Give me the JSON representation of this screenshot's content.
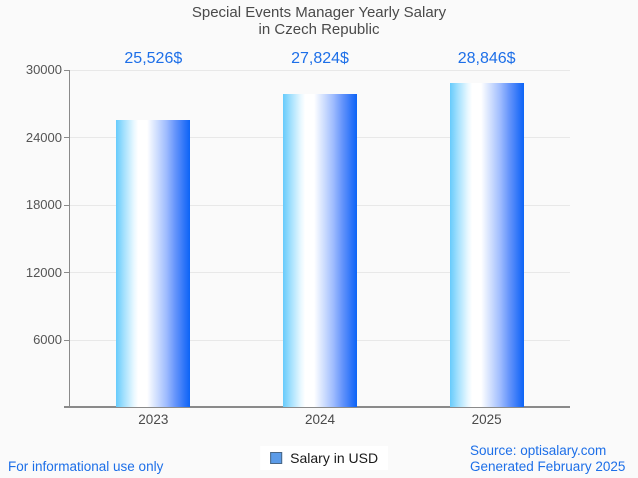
{
  "title": {
    "line1": "Special Events Manager Yearly Salary",
    "line2": "in Czech Republic"
  },
  "chart_data": {
    "type": "bar",
    "title": "Special Events Manager Yearly Salary in Czech Republic",
    "categories": [
      "2023",
      "2024",
      "2025"
    ],
    "values": [
      25526,
      27824,
      28846
    ],
    "value_labels": [
      "25,526$",
      "27,824$",
      "28,846$"
    ],
    "series_name": "Salary in USD",
    "xlabel": "",
    "ylabel": "",
    "ylim": [
      0,
      30000
    ],
    "yticks": [
      6000,
      12000,
      18000,
      24000,
      30000
    ],
    "ytick_labels": [
      "6000",
      "12000",
      "18000",
      "24000",
      "30000"
    ],
    "grid": true,
    "legend_position": "bottom",
    "bar_gradient": [
      [
        "#66cbfc",
        0
      ],
      [
        "#9fdffd",
        10
      ],
      [
        "#e8f8ff",
        24
      ],
      [
        "#ffffff",
        30
      ],
      [
        "#ffffff",
        42
      ],
      [
        "#ccdcfe",
        56
      ],
      [
        "#9fbcfe",
        68
      ],
      [
        "#6695fb",
        80
      ],
      [
        "#2b73f8",
        93
      ],
      [
        "#0c64f6",
        100
      ]
    ]
  },
  "legend": {
    "label": "Salary in USD",
    "marker_fill": "#5b9be8",
    "marker_border": "#4a6785"
  },
  "footer": {
    "left_note": "For informational use only",
    "source": "Source: optisalary.com",
    "generated": "Generated February 2025"
  },
  "colors": {
    "accent_blue": "#1d6fe8",
    "title_gray": "#4a4a4a",
    "axis_gray": "#8a8a8a",
    "gridline_gray": "#e8e8e8",
    "background": "#fafafa"
  }
}
